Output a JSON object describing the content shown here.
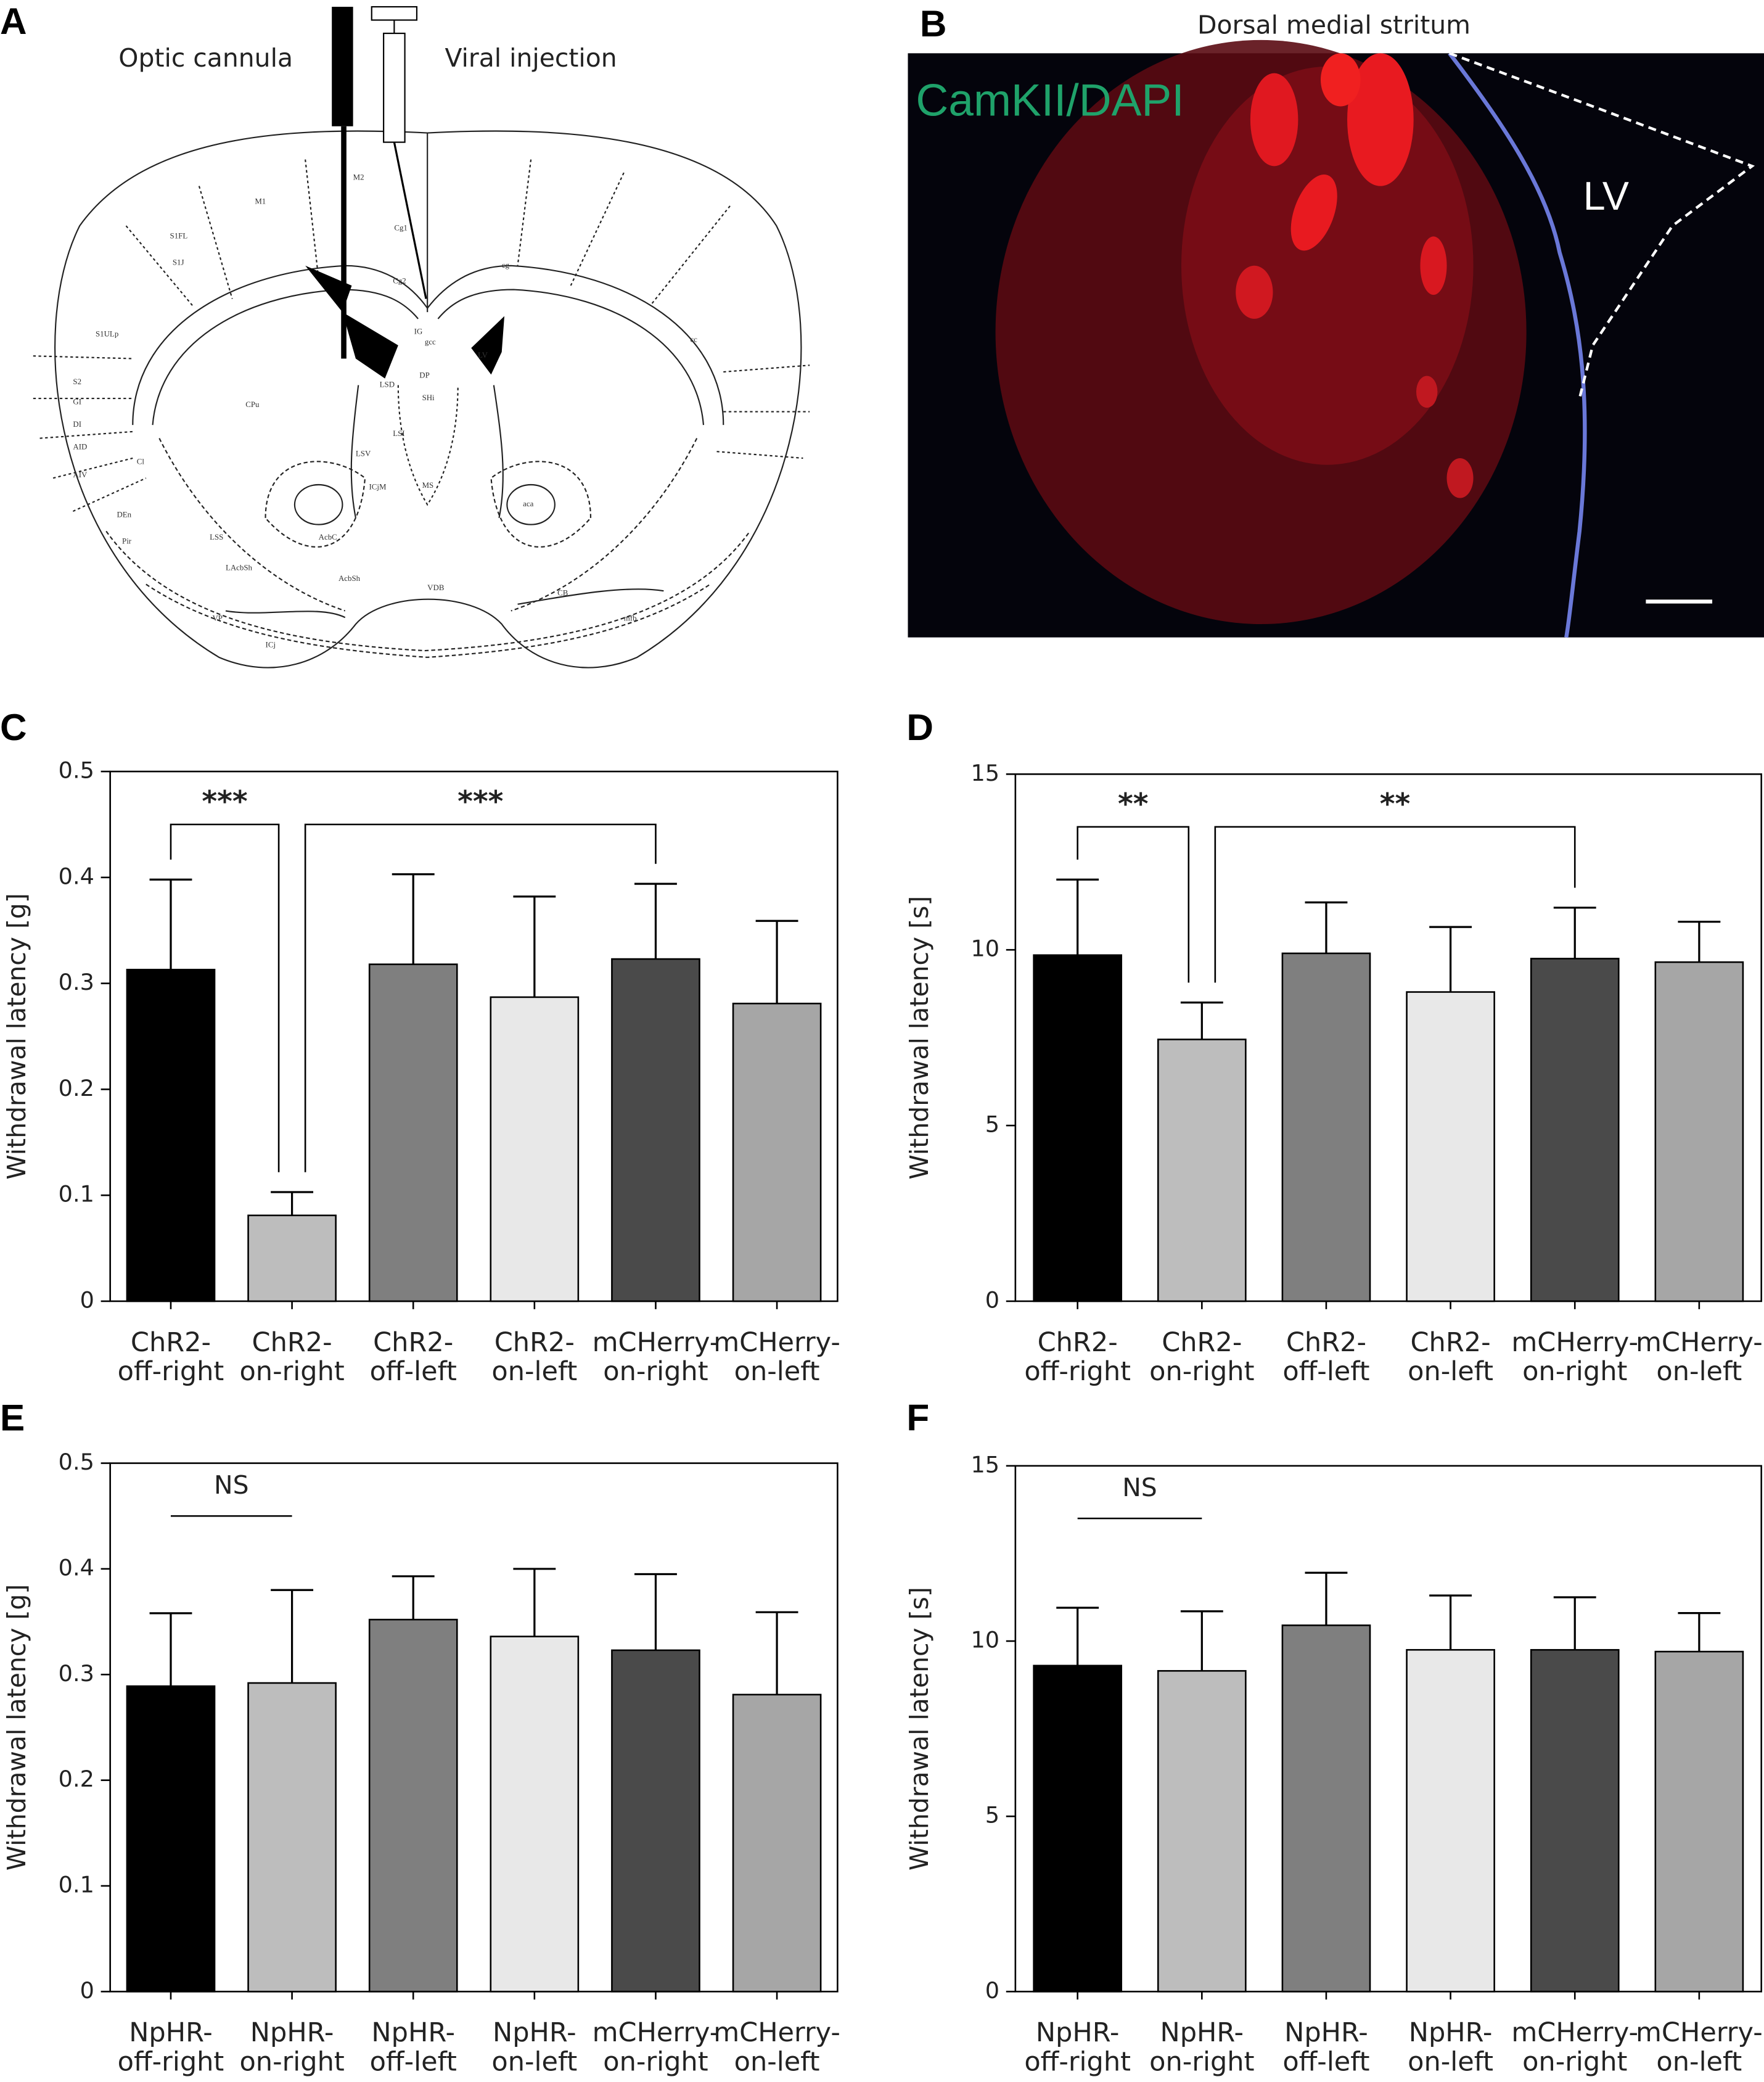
{
  "panel_labels": [
    "A",
    "B",
    "C",
    "D",
    "E",
    "F"
  ],
  "diagram": {
    "labels": [
      "Optic cannula",
      "Viral injection"
    ],
    "atlas_labels": [
      "M1",
      "M2",
      "Cg1",
      "Cg2",
      "S1J",
      "S1FL",
      "S1ULp",
      "S2",
      "GI",
      "DI",
      "AID",
      "AIV",
      "CPu",
      "LV",
      "LSD",
      "LSI",
      "LSV",
      "MS",
      "AcbC",
      "AcbSh",
      "VDB",
      "DEn",
      "Pir",
      "LSS",
      "LAcbSh",
      "VP",
      "ICj",
      "CB",
      "aca",
      "cc",
      "IG",
      "gcc",
      "DP",
      "SHi",
      "Cl",
      "ICjM",
      "mfb",
      "cg"
    ]
  },
  "micrograph": {
    "title": "Dorsal medial stritum",
    "stain": "CamKII/DAPI",
    "region": "LV"
  },
  "chart_data": [
    {
      "type": "bar",
      "ylabel": "Withdrawal latency [g]",
      "categories": [
        "ChR2-off-right",
        "ChR2-on-right",
        "ChR2-off-left",
        "ChR2-on-left",
        "mCHerry-on-right",
        "mCHerry-on-left"
      ],
      "values": [
        0.313,
        0.081,
        0.318,
        0.287,
        0.323,
        0.281
      ],
      "errors": [
        0.085,
        0.022,
        0.085,
        0.095,
        0.071,
        0.078
      ],
      "colors": [
        "#000000",
        "#bdbdbd",
        "#7f7f7f",
        "#e8e8e8",
        "#4a4a4a",
        "#a6a6a6"
      ],
      "ylim": [
        0,
        0.5
      ],
      "yticks": [
        0,
        0.1,
        0.2,
        0.3,
        0.4,
        0.5
      ],
      "annotations": [
        {
          "text": "***",
          "from": 0,
          "to": 1,
          "legs": true
        },
        {
          "text": "***",
          "from": 1,
          "to": 4,
          "legs": true
        }
      ]
    },
    {
      "type": "bar",
      "ylabel": "Withdrawal latency [s]",
      "categories": [
        "ChR2-off-right",
        "ChR2-on-right",
        "ChR2-off-left",
        "ChR2-on-left",
        "mCHerry-on-right",
        "mCHerry-on-left"
      ],
      "values": [
        9.85,
        7.45,
        9.9,
        8.8,
        9.75,
        9.65
      ],
      "errors": [
        2.15,
        1.05,
        1.45,
        1.85,
        1.45,
        1.15
      ],
      "colors": [
        "#000000",
        "#bdbdbd",
        "#7f7f7f",
        "#e8e8e8",
        "#4a4a4a",
        "#a6a6a6"
      ],
      "ylim": [
        0,
        15
      ],
      "yticks": [
        0,
        5,
        10,
        15
      ],
      "annotations": [
        {
          "text": "**",
          "from": 0,
          "to": 1,
          "legs": true
        },
        {
          "text": "**",
          "from": 1,
          "to": 4,
          "legs": true
        }
      ]
    },
    {
      "type": "bar",
      "ylabel": "Withdrawal latency [g]",
      "categories": [
        "NpHR-off-right",
        "NpHR-on-right",
        "NpHR-off-left",
        "NpHR-on-left",
        "mCHerry-on-right",
        "mCHerry-on-left"
      ],
      "values": [
        0.289,
        0.292,
        0.352,
        0.336,
        0.323,
        0.281
      ],
      "errors": [
        0.069,
        0.088,
        0.041,
        0.064,
        0.072,
        0.078
      ],
      "colors": [
        "#000000",
        "#bdbdbd",
        "#7f7f7f",
        "#e8e8e8",
        "#4a4a4a",
        "#a6a6a6"
      ],
      "ylim": [
        0,
        0.5
      ],
      "yticks": [
        0,
        0.1,
        0.2,
        0.3,
        0.4,
        0.5
      ],
      "annotations": [
        {
          "text": "NS",
          "from": 0,
          "to": 1,
          "legs": false
        }
      ]
    },
    {
      "type": "bar",
      "ylabel": "Withdrawal latency [s]",
      "categories": [
        "NpHR-off-right",
        "NpHR-on-right",
        "NpHR-off-left",
        "NpHR-on-left",
        "mCHerry-on-right",
        "mCHerry-on-left"
      ],
      "values": [
        9.3,
        9.15,
        10.45,
        9.75,
        9.75,
        9.7
      ],
      "errors": [
        1.65,
        1.7,
        1.5,
        1.55,
        1.5,
        1.1
      ],
      "colors": [
        "#000000",
        "#bdbdbd",
        "#7f7f7f",
        "#e8e8e8",
        "#4a4a4a",
        "#a6a6a6"
      ],
      "ylim": [
        0,
        15
      ],
      "yticks": [
        0,
        5,
        10,
        15
      ],
      "annotations": [
        {
          "text": "NS",
          "from": 0,
          "to": 1,
          "legs": false
        }
      ]
    }
  ]
}
